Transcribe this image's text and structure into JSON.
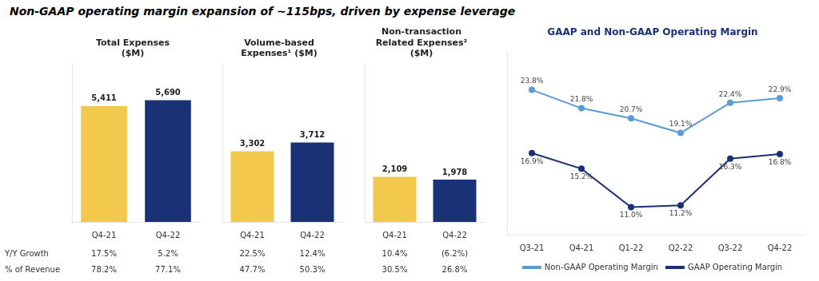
{
  "title": "Non-GAAP operating margin expansion of ~115bps, driven by expense leverage",
  "annotations": [
    "Y/Y Growth",
    "% of Revenue"
  ],
  "chart_data": [
    {
      "type": "bar",
      "title": [
        "Total Expenses",
        "($M)"
      ],
      "categories": [
        "Q4-21",
        "Q4-22"
      ],
      "values": [
        5411,
        5690
      ],
      "value_labels": [
        "5,411",
        "5,690"
      ],
      "colors": [
        "#f2c94c",
        "#1b3175"
      ],
      "ylim": [
        0,
        7397
      ],
      "grid": false,
      "data_labels": true,
      "tick_labels": "x",
      "annotations": [
        [
          "17.5%",
          "5.2%"
        ],
        [
          "78.2%",
          "77.1%"
        ]
      ]
    },
    {
      "type": "bar",
      "title": [
        "Volume-based",
        "Expenses¹ ($M)"
      ],
      "categories": [
        "Q4-21",
        "Q4-22"
      ],
      "values": [
        3302,
        3712
      ],
      "value_labels": [
        "3,302",
        "3,712"
      ],
      "colors": [
        "#f2c94c",
        "#1b3175"
      ],
      "ylim": [
        0,
        7397
      ],
      "grid": false,
      "data_labels": true,
      "tick_labels": "x",
      "annotations": [
        [
          "22.5%",
          "12.4%"
        ],
        [
          "47.7%",
          "50.3%"
        ]
      ]
    },
    {
      "type": "bar",
      "title": [
        "Non-transaction",
        "Related Expenses²",
        "($M)"
      ],
      "categories": [
        "Q4-21",
        "Q4-22"
      ],
      "values": [
        2109,
        1978
      ],
      "value_labels": [
        "2,109",
        "1,978"
      ],
      "colors": [
        "#f2c94c",
        "#1b3175"
      ],
      "ylim": [
        0,
        7397
      ],
      "grid": false,
      "data_labels": true,
      "tick_labels": "x",
      "annotations": [
        [
          "10.4%",
          "(6.2%)"
        ],
        [
          "30.5%",
          "26.8%"
        ]
      ]
    },
    {
      "type": "line",
      "title": "GAAP and Non-GAAP Operating Margin",
      "categories": [
        "Q3-21",
        "Q4-21",
        "Q1-22",
        "Q2-22",
        "Q3-22",
        "Q4-22"
      ],
      "series": [
        {
          "name": "Non-GAAP Operating Margin",
          "color": "#5b9bd5",
          "marker": "circle",
          "values": [
            23.8,
            21.8,
            20.7,
            19.1,
            22.4,
            22.9
          ],
          "value_labels": [
            "23.8%",
            "21.8%",
            "20.7%",
            "19.1%",
            "22.4%",
            "22.9%"
          ]
        },
        {
          "name": "GAAP Operating Margin",
          "color": "#1b3175",
          "marker": "circle",
          "values": [
            16.9,
            15.2,
            11.0,
            11.2,
            16.3,
            16.8
          ],
          "value_labels": [
            "16.9%",
            "15.2%",
            "11.0%",
            "11.2%",
            "16.3%",
            "16.8%"
          ]
        }
      ],
      "ylim": [
        8,
        28
      ],
      "grid": false,
      "data_labels": true,
      "tick_labels": "x",
      "legend": "bottom"
    }
  ]
}
